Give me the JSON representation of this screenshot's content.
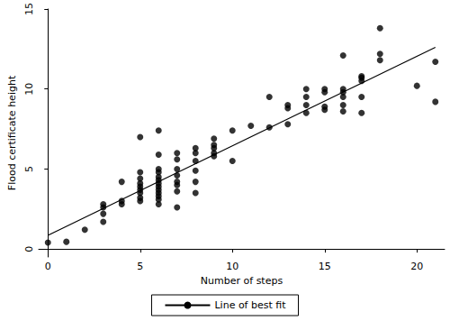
{
  "chart_data": {
    "type": "scatter",
    "x_label": "Number of steps",
    "y_label": "Flood certificate height",
    "xlim": [
      -0.5,
      21.5
    ],
    "xticks": [
      0,
      5,
      10,
      15,
      20
    ],
    "ylim": [
      -0.5,
      15
    ],
    "yticks": [
      0,
      5,
      10,
      15
    ],
    "grid": false,
    "legend": "bottom",
    "series": [
      {
        "type": "scatter",
        "color": "#000000",
        "marker": "circle",
        "x": [
          0,
          1,
          2,
          3,
          3,
          3,
          3,
          4,
          4,
          4,
          5,
          5,
          5,
          5,
          5,
          5,
          5,
          5,
          5,
          6,
          6,
          6,
          6,
          6,
          6,
          6,
          6,
          6,
          6,
          6,
          6,
          6,
          7,
          7,
          7,
          7,
          7,
          7,
          7,
          7,
          8,
          8,
          8,
          8,
          8,
          8,
          9,
          9,
          9,
          9,
          9,
          10,
          10,
          11,
          12,
          12,
          13,
          13,
          13,
          14,
          14,
          14,
          14,
          15,
          15,
          15,
          15,
          16,
          16,
          16,
          16,
          16,
          16,
          17,
          17,
          17,
          17,
          17,
          18,
          18,
          18,
          20,
          21,
          21
        ],
        "values": [
          0.4,
          0.45,
          1.2,
          1.7,
          2.2,
          2.6,
          2.8,
          2.8,
          3.0,
          4.2,
          3.0,
          3.2,
          3.5,
          3.7,
          3.9,
          4.1,
          4.4,
          4.8,
          7.0,
          2.8,
          3.1,
          3.3,
          3.5,
          3.7,
          3.9,
          4.1,
          4.3,
          4.5,
          4.8,
          5.0,
          5.9,
          7.4,
          2.6,
          3.6,
          4.0,
          4.2,
          4.6,
          5.0,
          5.6,
          6.0,
          3.5,
          4.2,
          4.9,
          5.5,
          6.0,
          6.3,
          5.8,
          6.0,
          6.3,
          6.5,
          6.9,
          5.5,
          7.4,
          7.7,
          7.6,
          9.5,
          7.8,
          8.8,
          9.0,
          8.5,
          9.0,
          9.5,
          10.0,
          8.7,
          8.9,
          9.8,
          10.0,
          8.6,
          9.0,
          9.5,
          9.8,
          10.0,
          12.1,
          8.5,
          9.5,
          10.5,
          10.7,
          10.8,
          11.8,
          12.2,
          13.8,
          10.2,
          9.2,
          11.7
        ]
      },
      {
        "name": "Line of best fit",
        "type": "line",
        "color": "#000000",
        "line_style": "solid",
        "x": [
          0,
          21
        ],
        "values": [
          0.85,
          12.6
        ]
      }
    ]
  }
}
